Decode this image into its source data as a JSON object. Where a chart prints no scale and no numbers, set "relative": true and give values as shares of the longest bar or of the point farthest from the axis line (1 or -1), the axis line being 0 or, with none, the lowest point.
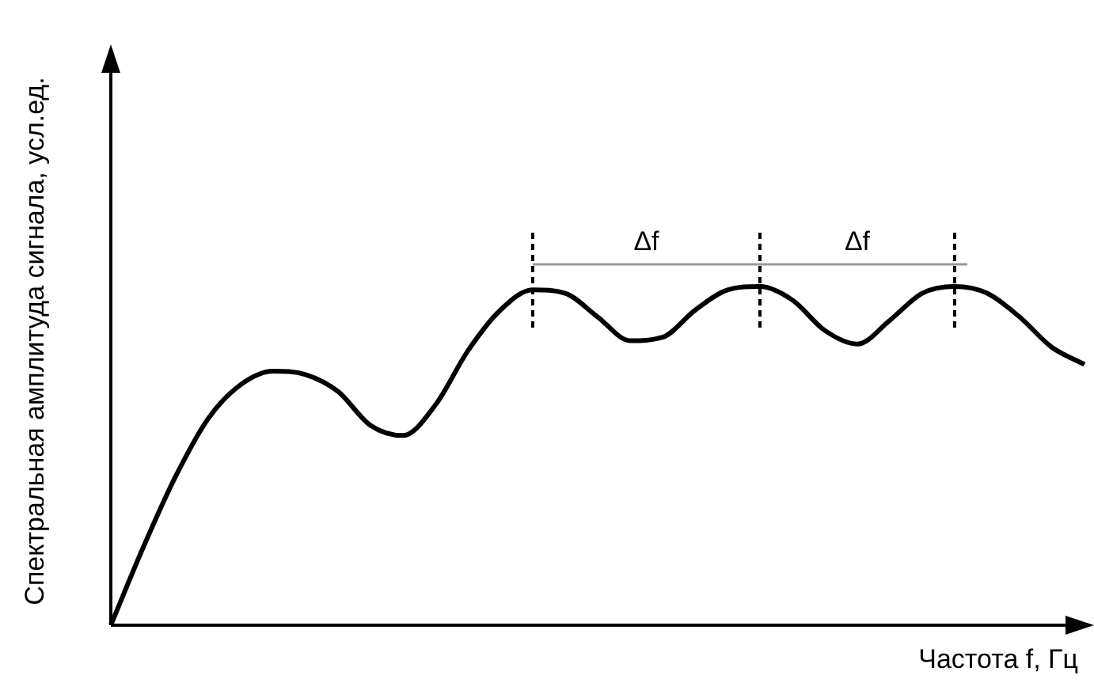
{
  "chart_data": {
    "type": "line",
    "relative": true,
    "xlabel": "Частота f, Гц",
    "ylabel": "Спектральная амплитуда сигнала, усл.ед.",
    "categories": [
      null,
      null,
      null,
      null,
      null,
      null,
      null,
      null,
      null,
      null,
      null,
      null,
      null,
      null,
      null,
      null,
      null,
      null,
      null,
      null,
      null,
      null,
      null,
      null,
      null,
      null,
      null,
      null,
      null,
      null,
      null
    ],
    "series": [
      {
        "color": "#000000",
        "values": [
          0,
          0.23,
          0.44,
          0.61,
          0.71,
          0.75,
          0.74,
          0.69,
          0.59,
          0.56,
          0.65,
          0.81,
          0.93,
          0.99,
          0.98,
          0.91,
          0.84,
          0.85,
          0.93,
          0.99,
          1,
          0.96,
          0.87,
          0.83,
          0.9,
          0.98,
          1,
          0.98,
          0.91,
          0.82,
          0.77
        ]
      }
    ],
    "annotations": [
      "Δf",
      "Δf"
    ],
    "marker": "none",
    "legend": false
  }
}
